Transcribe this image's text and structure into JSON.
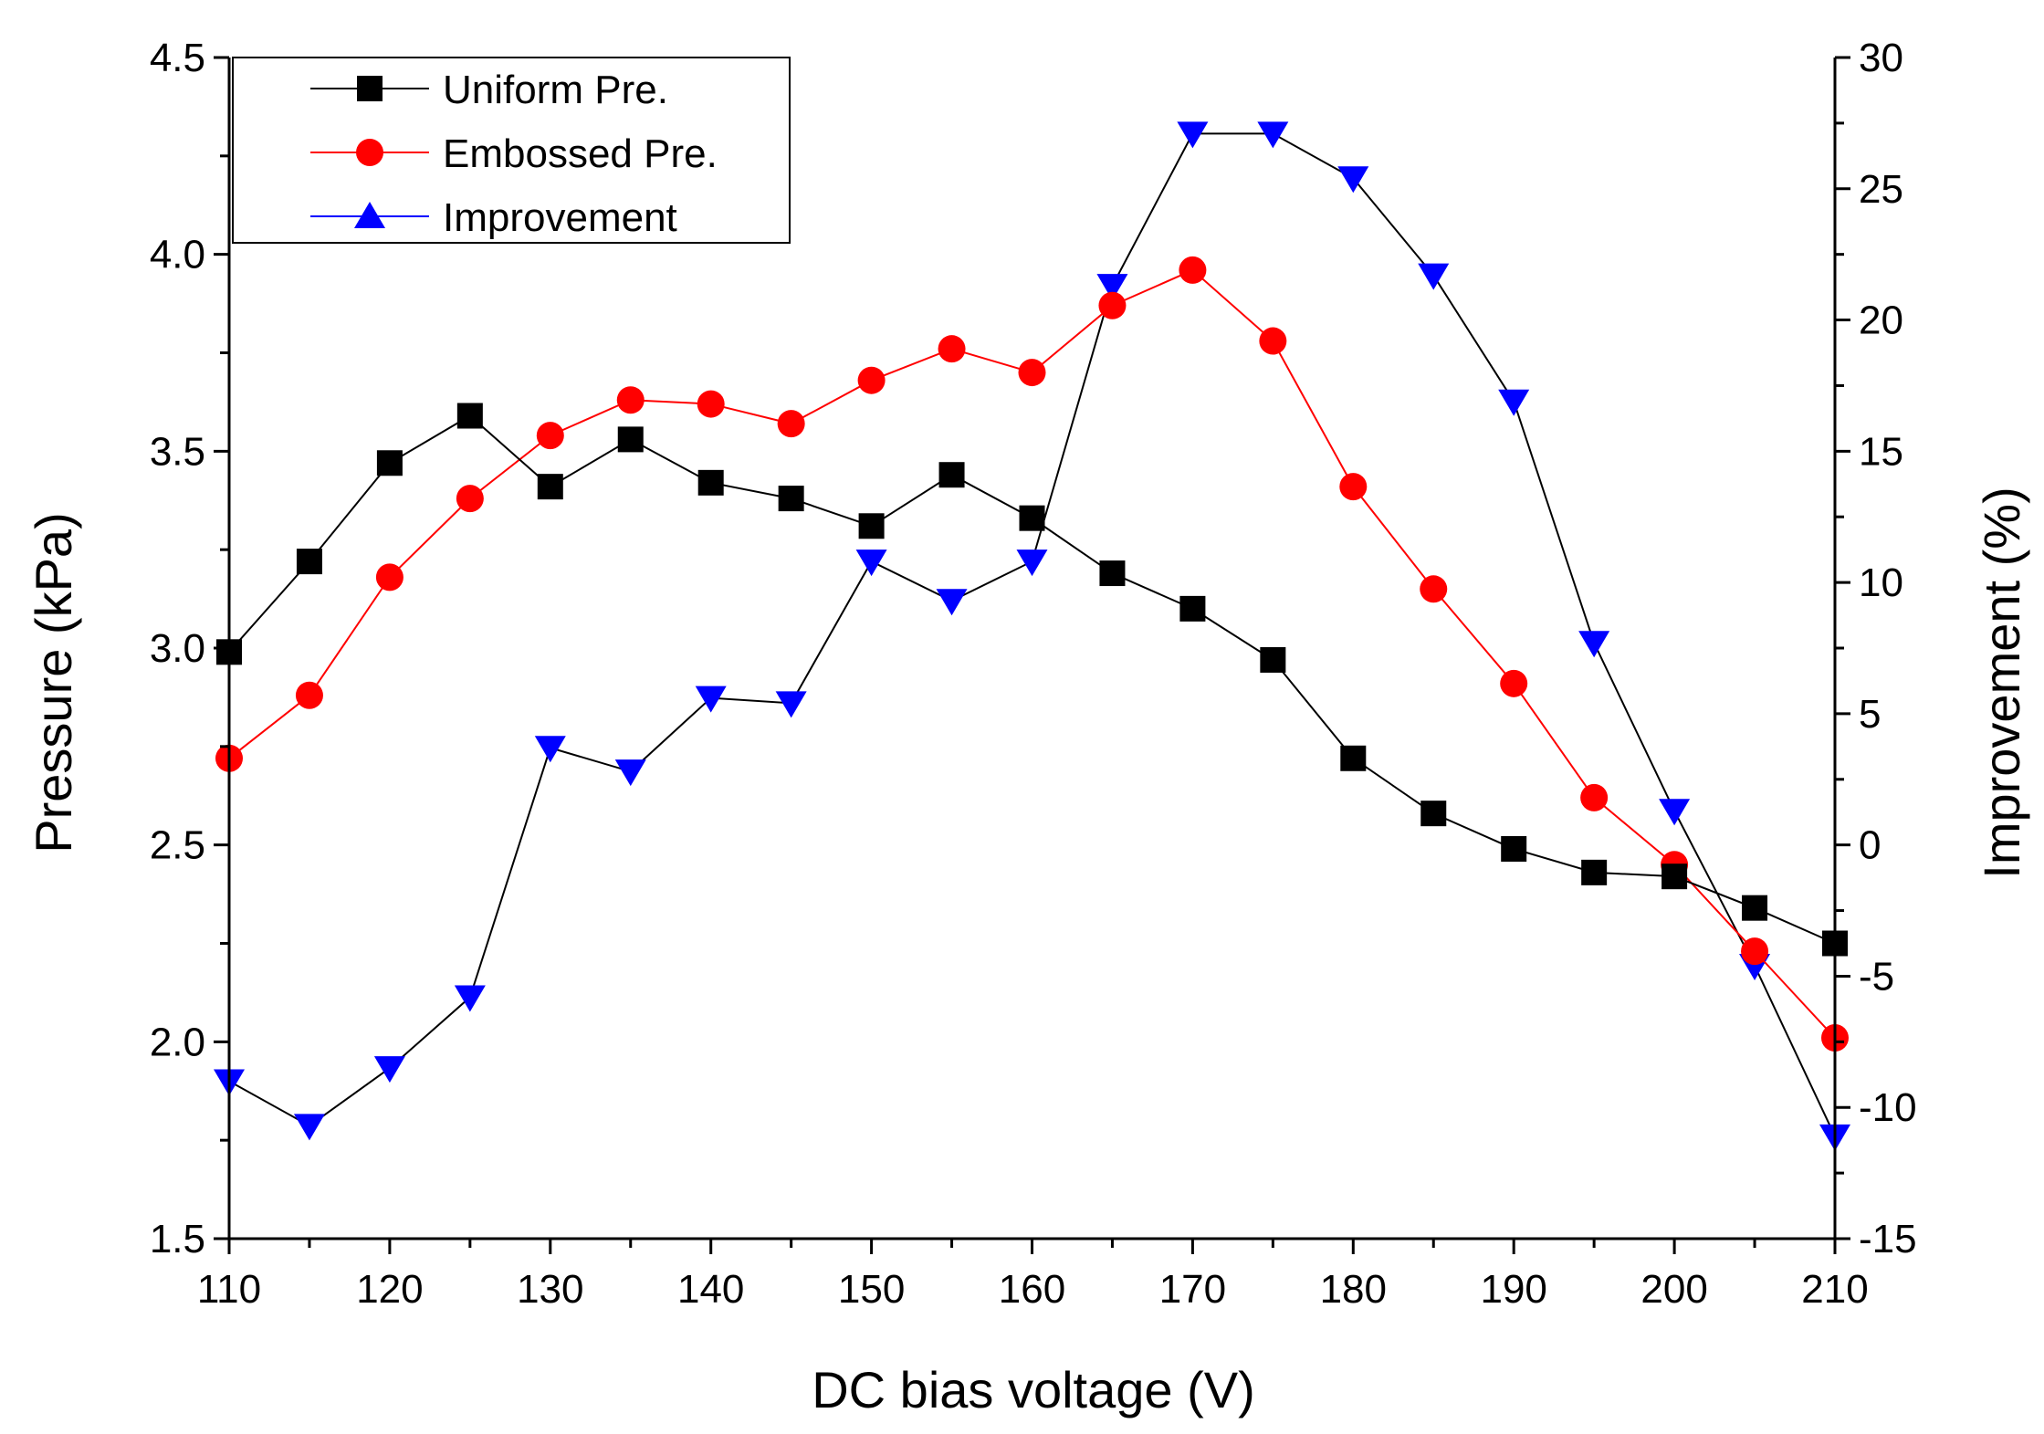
{
  "chart_data": {
    "type": "line",
    "title": "",
    "xlabel": "DC bias voltage (V)",
    "ylabel": "Pressure (kPa)",
    "y2label": "Improvement (%)",
    "xlim": [
      110,
      210
    ],
    "ylim": [
      1.5,
      4.5
    ],
    "y2lim": [
      -15,
      30
    ],
    "x_ticks": [
      110,
      120,
      130,
      140,
      150,
      160,
      170,
      180,
      190,
      200,
      210
    ],
    "y_ticks": [
      "1.5",
      "2.0",
      "2.5",
      "3.0",
      "3.5",
      "4.0",
      "4.5"
    ],
    "y2_ticks": [
      "-15",
      "-10",
      "-5",
      "0",
      "5",
      "10",
      "15",
      "20",
      "25",
      "30"
    ],
    "x": [
      110,
      115,
      120,
      125,
      130,
      135,
      140,
      145,
      150,
      155,
      160,
      165,
      170,
      175,
      180,
      185,
      190,
      195,
      200,
      205,
      210
    ],
    "legend_position": "top-left",
    "series": [
      {
        "name": "Uniform Pre.",
        "axis": "left",
        "color": "#000000",
        "marker": "square",
        "values": [
          2.99,
          3.22,
          3.47,
          3.59,
          3.41,
          3.53,
          3.42,
          3.38,
          3.31,
          3.44,
          3.33,
          3.19,
          3.1,
          2.97,
          2.72,
          2.58,
          2.49,
          2.43,
          2.42,
          2.34,
          2.25
        ]
      },
      {
        "name": "Embossed Pre.",
        "axis": "left",
        "color": "#ff0000",
        "marker": "circle",
        "values": [
          2.72,
          2.88,
          3.18,
          3.38,
          3.54,
          3.63,
          3.62,
          3.57,
          3.68,
          3.76,
          3.7,
          3.87,
          3.96,
          3.78,
          3.41,
          3.15,
          2.91,
          2.62,
          2.45,
          2.23,
          2.01
        ]
      },
      {
        "name": "Improvement",
        "axis": "right",
        "color": "#0000ff",
        "line_color": "#000000",
        "marker": "triangle-down",
        "legend_marker": "triangle-up",
        "values": [
          -9.0,
          -10.7,
          -8.5,
          -5.8,
          3.7,
          2.8,
          5.6,
          5.4,
          10.8,
          9.3,
          10.8,
          21.3,
          27.1,
          27.1,
          25.4,
          21.7,
          16.9,
          7.7,
          1.3,
          -4.6,
          -11.1
        ]
      }
    ]
  }
}
